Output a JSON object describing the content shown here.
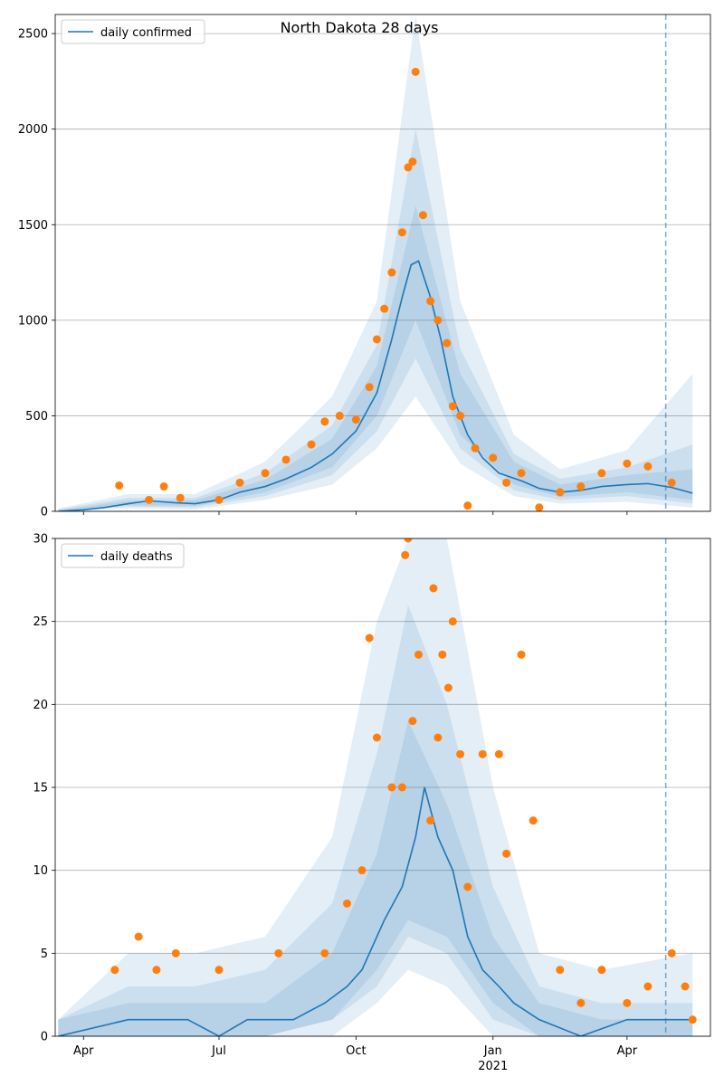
{
  "colors": {
    "line": "#1f77b4",
    "points": "#ff7f0e",
    "band": "#1f77b4",
    "grid": "#b0b0b0",
    "vline": "#1f77b4"
  },
  "chart_data": [
    {
      "type": "line",
      "title": "North Dakota 28 days",
      "xlabel": "",
      "ylabel": "",
      "ylim": [
        0,
        2600
      ],
      "yticks": [
        0,
        500,
        1000,
        1500,
        2000,
        2500
      ],
      "grid": "horizontal",
      "legend": {
        "entries": [
          "daily confirmed"
        ],
        "placement": "top-left"
      },
      "x_ticks": [
        {
          "date": "2020-04-01",
          "label": "Apr"
        },
        {
          "date": "2020-07-01",
          "label": "Jul"
        },
        {
          "date": "2020-10-01",
          "label": "Oct"
        },
        {
          "date": "2021-01-01",
          "label": "Jan"
        },
        {
          "date": "2021-04-01",
          "label": "Apr"
        }
      ],
      "year_label": "2021",
      "forecast_start": "2021-04-27",
      "model_series": {
        "name": "daily confirmed",
        "points": [
          [
            "2020-03-15",
            0
          ],
          [
            "2020-04-01",
            8
          ],
          [
            "2020-04-15",
            20
          ],
          [
            "2020-05-01",
            40
          ],
          [
            "2020-05-15",
            55
          ],
          [
            "2020-06-01",
            45
          ],
          [
            "2020-06-15",
            40
          ],
          [
            "2020-07-01",
            60
          ],
          [
            "2020-07-15",
            100
          ],
          [
            "2020-08-01",
            130
          ],
          [
            "2020-08-15",
            170
          ],
          [
            "2020-09-01",
            230
          ],
          [
            "2020-09-15",
            300
          ],
          [
            "2020-10-01",
            420
          ],
          [
            "2020-10-15",
            620
          ],
          [
            "2020-10-25",
            900
          ],
          [
            "2020-11-01",
            1120
          ],
          [
            "2020-11-07",
            1290
          ],
          [
            "2020-11-12",
            1310
          ],
          [
            "2020-11-20",
            1120
          ],
          [
            "2020-11-27",
            900
          ],
          [
            "2020-12-05",
            600
          ],
          [
            "2020-12-15",
            400
          ],
          [
            "2020-12-25",
            280
          ],
          [
            "2021-01-05",
            200
          ],
          [
            "2021-01-20",
            160
          ],
          [
            "2021-02-01",
            120
          ],
          [
            "2021-02-15",
            100
          ],
          [
            "2021-03-01",
            110
          ],
          [
            "2021-03-15",
            130
          ],
          [
            "2021-04-01",
            140
          ],
          [
            "2021-04-15",
            145
          ],
          [
            "2021-05-01",
            125
          ],
          [
            "2021-05-15",
            95
          ]
        ]
      },
      "bands": [
        {
          "level": "outer",
          "points": [
            [
              "2020-03-15",
              0,
              15
            ],
            [
              "2020-05-01",
              15,
              90
            ],
            [
              "2020-06-15",
              10,
              90
            ],
            [
              "2020-08-01",
              60,
              260
            ],
            [
              "2020-09-15",
              140,
              600
            ],
            [
              "2020-10-15",
              330,
              1100
            ],
            [
              "2020-11-10",
              600,
              2600
            ],
            [
              "2020-12-10",
              250,
              1100
            ],
            [
              "2021-01-15",
              80,
              400
            ],
            [
              "2021-02-15",
              40,
              220
            ],
            [
              "2021-04-01",
              50,
              320
            ],
            [
              "2021-05-15",
              20,
              720
            ]
          ]
        },
        {
          "level": "middle",
          "points": [
            [
              "2020-03-15",
              0,
              10
            ],
            [
              "2020-05-01",
              25,
              70
            ],
            [
              "2020-06-15",
              20,
              70
            ],
            [
              "2020-08-01",
              80,
              200
            ],
            [
              "2020-09-15",
              190,
              450
            ],
            [
              "2020-10-15",
              420,
              870
            ],
            [
              "2020-11-10",
              800,
              2000
            ],
            [
              "2020-12-10",
              330,
              850
            ],
            [
              "2021-01-15",
              110,
              300
            ],
            [
              "2021-02-15",
              60,
              170
            ],
            [
              "2021-04-01",
              80,
              230
            ],
            [
              "2021-05-15",
              40,
              350
            ]
          ]
        },
        {
          "level": "inner",
          "points": [
            [
              "2020-03-15",
              0,
              6
            ],
            [
              "2020-05-01",
              32,
              55
            ],
            [
              "2020-06-15",
              28,
              58
            ],
            [
              "2020-08-01",
              100,
              165
            ],
            [
              "2020-09-15",
              230,
              380
            ],
            [
              "2020-10-15",
              500,
              760
            ],
            [
              "2020-11-10",
              1000,
              1600
            ],
            [
              "2020-12-10",
              400,
              720
            ],
            [
              "2021-01-15",
              140,
              260
            ],
            [
              "2021-02-15",
              75,
              140
            ],
            [
              "2021-04-01",
              100,
              190
            ],
            [
              "2021-05-15",
              60,
              220
            ]
          ]
        }
      ],
      "observed": [
        [
          "2020-04-25",
          135
        ],
        [
          "2020-05-15",
          60
        ],
        [
          "2020-05-25",
          130
        ],
        [
          "2020-06-05",
          70
        ],
        [
          "2020-07-01",
          60
        ],
        [
          "2020-07-15",
          150
        ],
        [
          "2020-08-01",
          200
        ],
        [
          "2020-08-15",
          270
        ],
        [
          "2020-09-01",
          350
        ],
        [
          "2020-09-10",
          470
        ],
        [
          "2020-09-20",
          500
        ],
        [
          "2020-10-01",
          480
        ],
        [
          "2020-10-10",
          650
        ],
        [
          "2020-10-15",
          900
        ],
        [
          "2020-10-20",
          1060
        ],
        [
          "2020-10-25",
          1250
        ],
        [
          "2020-11-01",
          1460
        ],
        [
          "2020-11-05",
          1800
        ],
        [
          "2020-11-08",
          1830
        ],
        [
          "2020-11-10",
          2300
        ],
        [
          "2020-11-15",
          1550
        ],
        [
          "2020-11-20",
          1100
        ],
        [
          "2020-11-25",
          1000
        ],
        [
          "2020-12-01",
          880
        ],
        [
          "2020-12-05",
          550
        ],
        [
          "2020-12-10",
          500
        ],
        [
          "2020-12-15",
          30
        ],
        [
          "2020-12-20",
          330
        ],
        [
          "2021-01-01",
          280
        ],
        [
          "2021-01-10",
          150
        ],
        [
          "2021-01-20",
          200
        ],
        [
          "2021-02-01",
          20
        ],
        [
          "2021-02-15",
          100
        ],
        [
          "2021-03-01",
          130
        ],
        [
          "2021-03-15",
          200
        ],
        [
          "2021-04-01",
          250
        ],
        [
          "2021-04-15",
          235
        ],
        [
          "2021-05-01",
          150
        ]
      ]
    },
    {
      "type": "line",
      "title": "",
      "xlabel": "",
      "ylabel": "",
      "ylim": [
        0,
        30
      ],
      "yticks": [
        0,
        5,
        10,
        15,
        20,
        25,
        30
      ],
      "grid": "horizontal",
      "legend": {
        "entries": [
          "daily deaths"
        ],
        "placement": "top-left"
      },
      "x_ticks": [
        {
          "date": "2020-04-01",
          "label": "Apr"
        },
        {
          "date": "2020-07-01",
          "label": "Jul"
        },
        {
          "date": "2020-10-01",
          "label": "Oct"
        },
        {
          "date": "2021-01-01",
          "label": "Jan"
        },
        {
          "date": "2021-04-01",
          "label": "Apr"
        }
      ],
      "year_label": "2021",
      "forecast_start": "2021-04-27",
      "model_series": {
        "name": "daily deaths",
        "points": [
          [
            "2020-03-15",
            0
          ],
          [
            "2020-05-01",
            1
          ],
          [
            "2020-06-10",
            1
          ],
          [
            "2020-07-01",
            0
          ],
          [
            "2020-07-20",
            1
          ],
          [
            "2020-08-20",
            1
          ],
          [
            "2020-09-10",
            2
          ],
          [
            "2020-09-25",
            3
          ],
          [
            "2020-10-05",
            4
          ],
          [
            "2020-10-20",
            7
          ],
          [
            "2020-11-01",
            9
          ],
          [
            "2020-11-10",
            12
          ],
          [
            "2020-11-16",
            15
          ],
          [
            "2020-11-25",
            12
          ],
          [
            "2020-12-05",
            10
          ],
          [
            "2020-12-15",
            6
          ],
          [
            "2020-12-25",
            4
          ],
          [
            "2021-01-05",
            3
          ],
          [
            "2021-01-15",
            2
          ],
          [
            "2021-02-01",
            1
          ],
          [
            "2021-03-01",
            0
          ],
          [
            "2021-04-01",
            1
          ],
          [
            "2021-04-20",
            1
          ],
          [
            "2021-05-15",
            1
          ]
        ]
      },
      "bands": [
        {
          "level": "outer",
          "points": [
            [
              "2020-03-15",
              0,
              1
            ],
            [
              "2020-05-01",
              0,
              5
            ],
            [
              "2020-06-15",
              0,
              5
            ],
            [
              "2020-08-01",
              0,
              6
            ],
            [
              "2020-09-15",
              0,
              12
            ],
            [
              "2020-10-15",
              2,
              25
            ],
            [
              "2020-11-05",
              4,
              30
            ],
            [
              "2020-12-01",
              3,
              30
            ],
            [
              "2021-01-01",
              0,
              15
            ],
            [
              "2021-02-01",
              0,
              5
            ],
            [
              "2021-03-15",
              0,
              4
            ],
            [
              "2021-05-15",
              0,
              5
            ]
          ]
        },
        {
          "level": "middle",
          "points": [
            [
              "2020-03-15",
              0,
              1
            ],
            [
              "2020-05-01",
              0,
              3
            ],
            [
              "2020-06-15",
              0,
              3
            ],
            [
              "2020-08-01",
              0,
              4
            ],
            [
              "2020-09-15",
              1,
              8
            ],
            [
              "2020-10-15",
              3,
              17
            ],
            [
              "2020-11-05",
              6,
              26
            ],
            [
              "2020-12-01",
              5,
              20
            ],
            [
              "2021-01-01",
              1,
              9
            ],
            [
              "2021-02-01",
              0,
              3
            ],
            [
              "2021-03-15",
              0,
              2
            ],
            [
              "2021-05-15",
              0,
              2
            ]
          ]
        },
        {
          "level": "inner",
          "points": [
            [
              "2020-03-15",
              0,
              1
            ],
            [
              "2020-05-01",
              0,
              2
            ],
            [
              "2020-06-15",
              0,
              2
            ],
            [
              "2020-08-01",
              0,
              2
            ],
            [
              "2020-09-15",
              1,
              5
            ],
            [
              "2020-10-15",
              4,
              11
            ],
            [
              "2020-11-05",
              7,
              19
            ],
            [
              "2020-12-01",
              6,
              14
            ],
            [
              "2021-01-01",
              2,
              6
            ],
            [
              "2021-02-01",
              0,
              2
            ],
            [
              "2021-03-15",
              0,
              1
            ],
            [
              "2021-05-15",
              0,
              1
            ]
          ]
        }
      ],
      "observed": [
        [
          "2020-04-22",
          4
        ],
        [
          "2020-05-08",
          6
        ],
        [
          "2020-05-20",
          4
        ],
        [
          "2020-06-02",
          5
        ],
        [
          "2020-07-01",
          4
        ],
        [
          "2020-08-10",
          5
        ],
        [
          "2020-09-10",
          5
        ],
        [
          "2020-09-25",
          8
        ],
        [
          "2020-10-05",
          10
        ],
        [
          "2020-10-10",
          24
        ],
        [
          "2020-10-15",
          18
        ],
        [
          "2020-10-25",
          15
        ],
        [
          "2020-11-01",
          15
        ],
        [
          "2020-11-03",
          29
        ],
        [
          "2020-11-05",
          30
        ],
        [
          "2020-11-08",
          19
        ],
        [
          "2020-11-12",
          23
        ],
        [
          "2020-11-20",
          13
        ],
        [
          "2020-11-22",
          27
        ],
        [
          "2020-11-25",
          18
        ],
        [
          "2020-11-28",
          23
        ],
        [
          "2020-12-02",
          21
        ],
        [
          "2020-12-05",
          25
        ],
        [
          "2020-12-10",
          17
        ],
        [
          "2020-12-15",
          9
        ],
        [
          "2020-12-25",
          17
        ],
        [
          "2021-01-05",
          17
        ],
        [
          "2021-01-10",
          11
        ],
        [
          "2021-01-20",
          23
        ],
        [
          "2021-01-28",
          13
        ],
        [
          "2021-02-15",
          4
        ],
        [
          "2021-03-01",
          2
        ],
        [
          "2021-03-15",
          4
        ],
        [
          "2021-04-01",
          2
        ],
        [
          "2021-04-15",
          3
        ],
        [
          "2021-05-01",
          5
        ],
        [
          "2021-05-10",
          3
        ],
        [
          "2021-05-15",
          1
        ]
      ]
    }
  ]
}
